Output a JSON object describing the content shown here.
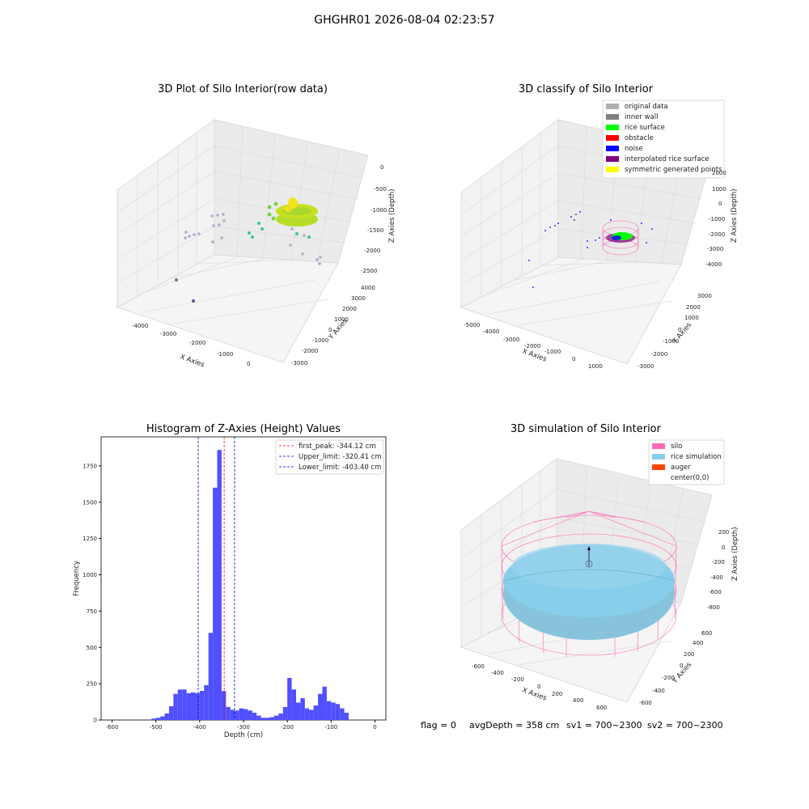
{
  "figure_title": "GHGHR01 2026-08-04 02:23:57",
  "footer": {
    "flag": "flag = 0",
    "avgDepth": "avgDepth = 358 cm",
    "sv1": "sv1 = 700~2300",
    "sv2": "sv2 = 700~2300"
  },
  "colors": {
    "histogram_bar": "#5050ff",
    "first_peak": "#ff0000",
    "limits": "#0000cc",
    "original": "#b0b0b0",
    "inner_wall": "#808080",
    "rice_surface": "#00ff00",
    "obstacle": "#ff0000",
    "noise": "#0000ff",
    "interpolated": "#800080",
    "symmetric": "#ffff00",
    "silo": "#ff69b4",
    "rice_simulation": "#87ceeb",
    "auger": "#ff4500"
  },
  "chart_data": [
    {
      "type": "scatter",
      "title": "3D Plot of Silo Interior(row data)",
      "xlabel": "X Axies",
      "ylabel": "Y Axies",
      "zlabel": "Z Axies (Depth)",
      "x_ticks": [
        "-4000",
        "-3000",
        "-2000",
        "-1000",
        "0"
      ],
      "y_ticks": [
        "-3000",
        "-2000",
        "-1000",
        "0",
        "1000",
        "2000",
        "3000",
        "4000"
      ],
      "z_ticks": [
        "0",
        "-500",
        "-1000",
        "-1500",
        "-2000",
        "-2500"
      ]
    },
    {
      "type": "scatter",
      "title": "3D classify of Silo Interior",
      "xlabel": "X Axies",
      "ylabel": "Y Axies",
      "zlabel": "Z Axies (Depth)",
      "x_ticks": [
        "-5000",
        "-4000",
        "-3000",
        "-2000",
        "-1000",
        "0",
        "1000"
      ],
      "y_ticks": [
        "-3000",
        "-2000",
        "-1000",
        "0",
        "1000",
        "2000",
        "3000"
      ],
      "z_ticks": [
        "2000",
        "1000",
        "0",
        "-1000",
        "-2000",
        "-3000",
        "-4000"
      ],
      "legend": [
        "original data",
        "inner wall",
        "rice surface",
        "obstacle",
        "noise",
        "interpolated rice surface",
        "symmetric generated points"
      ]
    },
    {
      "type": "bar",
      "title": "Histogram of Z-Axies (Height) Values",
      "xlabel": "Depth (cm)",
      "ylabel": "Frequency",
      "xlim": [
        -625,
        25
      ],
      "ylim": [
        0,
        1950
      ],
      "x_ticks": [
        -600,
        -500,
        -400,
        -300,
        -200,
        -100,
        0
      ],
      "y_ticks": [
        0,
        250,
        500,
        750,
        1000,
        1250,
        1500,
        1750
      ],
      "bin_width": 10,
      "bins": [
        [
          -510,
          10
        ],
        [
          -500,
          15
        ],
        [
          -490,
          25
        ],
        [
          -480,
          45
        ],
        [
          -470,
          95
        ],
        [
          -460,
          180
        ],
        [
          -450,
          210
        ],
        [
          -440,
          210
        ],
        [
          -430,
          185
        ],
        [
          -420,
          190
        ],
        [
          -410,
          185
        ],
        [
          -400,
          200
        ],
        [
          -390,
          240
        ],
        [
          -380,
          600
        ],
        [
          -370,
          1600
        ],
        [
          -360,
          1860
        ],
        [
          -350,
          200
        ],
        [
          -340,
          90
        ],
        [
          -330,
          70
        ],
        [
          -320,
          65
        ],
        [
          -310,
          80
        ],
        [
          -300,
          75
        ],
        [
          -290,
          65
        ],
        [
          -280,
          50
        ],
        [
          -270,
          30
        ],
        [
          -260,
          15
        ],
        [
          -250,
          15
        ],
        [
          -240,
          20
        ],
        [
          -230,
          30
        ],
        [
          -220,
          45
        ],
        [
          -210,
          90
        ],
        [
          -200,
          290
        ],
        [
          -190,
          210
        ],
        [
          -180,
          120
        ],
        [
          -170,
          150
        ],
        [
          -160,
          80
        ],
        [
          -150,
          70
        ],
        [
          -140,
          100
        ],
        [
          -130,
          180
        ],
        [
          -120,
          230
        ],
        [
          -110,
          130
        ],
        [
          -100,
          120
        ],
        [
          -90,
          110
        ],
        [
          -80,
          80
        ],
        [
          -70,
          50
        ]
      ],
      "lines": [
        {
          "label": "first_peak: -344.12 cm",
          "x": -344.12
        },
        {
          "label": "Upper_limit: -320.41 cm",
          "x": -320.41
        },
        {
          "label": "Lower_limit: -403.40 cm",
          "x": -403.4
        }
      ]
    },
    {
      "type": "scatter",
      "title": "3D simulation of Silo Interior",
      "xlabel": "X Axies",
      "ylabel": "Y Axies",
      "zlabel": "Z Axies (Depth)",
      "x_ticks": [
        "-600",
        "-400",
        "-200",
        "0",
        "200",
        "400",
        "600"
      ],
      "y_ticks": [
        "-600",
        "-400",
        "-200",
        "0",
        "200",
        "400",
        "600"
      ],
      "z_ticks": [
        "200",
        "0",
        "-200",
        "-400",
        "-600",
        "-800"
      ],
      "legend": [
        "silo",
        "rice simulation",
        "auger",
        "center(0,0)"
      ]
    }
  ]
}
